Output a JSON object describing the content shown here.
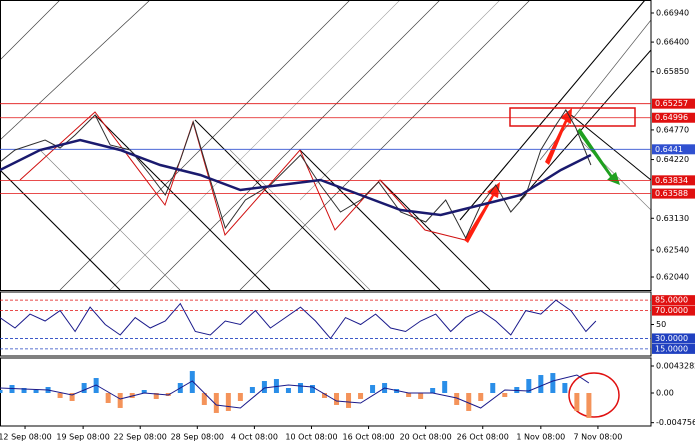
{
  "chart_data": [
    {
      "type": "line",
      "xlim": [
        0,
        130
      ],
      "xticks": [
        {
          "value": 5,
          "label": "12 Sep 08:00"
        },
        {
          "value": 16.6,
          "label": "19 Sep 08:00"
        },
        {
          "value": 28,
          "label": "22 Sep 08:00"
        },
        {
          "value": 39.4,
          "label": "28 Sep 08:00"
        },
        {
          "value": 50.8,
          "label": "4 Oct 08:00"
        },
        {
          "value": 62.2,
          "label": "10 Oct 08:00"
        },
        {
          "value": 73.6,
          "label": "16 Oct 08:00"
        },
        {
          "value": 85,
          "label": "20 Oct 08:00"
        },
        {
          "value": 96.4,
          "label": "26 Oct 08:00"
        },
        {
          "value": 108,
          "label": "1 Nov 08:00"
        },
        {
          "value": 119.4,
          "label": "7 Nov 08:00"
        }
      ],
      "ylim": [
        0.61799,
        0.67181
      ],
      "yticks": [
        {
          "value": 0.6694,
          "label": "0.66940"
        },
        {
          "value": 0.664,
          "label": "0.66400"
        },
        {
          "value": 0.6585,
          "label": "0.65850"
        },
        {
          "value": 0.6477,
          "label": "0.64770"
        },
        {
          "value": 0.6422,
          "label": "0.64220"
        },
        {
          "value": 0.6313,
          "label": "0.63130"
        },
        {
          "value": 0.6254,
          "label": "0.62540"
        },
        {
          "value": 0.6204,
          "label": "0.62040"
        }
      ],
      "levels": [
        {
          "value": 0.65257,
          "color": "#e01010"
        },
        {
          "value": 0.64996,
          "color": "#e01010"
        },
        {
          "value": 0.6441,
          "color": "#3050d0"
        },
        {
          "value": 0.63834,
          "color": "#e01010"
        },
        {
          "value": 0.63588,
          "color": "#e01010"
        }
      ],
      "series": [
        {
          "color": "#303030",
          "x": [
            0,
            3,
            6,
            9,
            12,
            15,
            19,
            22,
            26,
            30,
            33,
            36,
            38.6,
            42,
            45,
            49,
            54,
            60,
            64,
            68,
            72,
            75.6,
            80,
            85,
            89,
            93,
            96,
            99,
            102,
            105,
            108,
            111,
            113,
            115,
            118
          ],
          "values": [
            0.64174,
            0.64397,
            0.6449,
            0.64583,
            0.64434,
            0.64675,
            0.65047,
            0.6449,
            0.64397,
            0.63933,
            0.63562,
            0.64211,
            0.64917,
            0.6384,
            0.62949,
            0.63469,
            0.63747,
            0.64304,
            0.63747,
            0.63246,
            0.63469,
            0.63803,
            0.63246,
            0.63061,
            0.63469,
            0.62764,
            0.63376,
            0.63747,
            0.63246,
            0.63562,
            0.64397,
            0.64861,
            0.65139,
            0.64805,
            0.64118
          ]
        },
        {
          "color": "#1a1a6e",
          "x": [
            0,
            8,
            16,
            24,
            32,
            40,
            48,
            56,
            64,
            72,
            80,
            88,
            96,
            104,
            112,
            118
          ],
          "values": [
            0.64026,
            0.64397,
            0.64583,
            0.64397,
            0.64119,
            0.63933,
            0.63655,
            0.63747,
            0.6384,
            0.63562,
            0.63284,
            0.63191,
            0.63376,
            0.63562,
            0.64026,
            0.64304
          ]
        }
      ]
    },
    {
      "type": "line",
      "xlim": [
        0,
        130
      ],
      "ylim": [
        4.8,
        96.7
      ],
      "yticks": [
        50
      ],
      "levels": [
        {
          "value": 85,
          "label": "85.0000",
          "color": "#e01010"
        },
        {
          "value": 70,
          "label": "70.0000",
          "color": "#e01010"
        },
        {
          "value": 30,
          "label": "30.0000",
          "color": "#2040c0"
        },
        {
          "value": 15,
          "label": "15.0000",
          "color": "#2040c0"
        }
      ],
      "series": [
        {
          "color": "#1a1a8b",
          "x": [
            0,
            3,
            6,
            9,
            12,
            15,
            18,
            21,
            24,
            27,
            30,
            33,
            36,
            39,
            42,
            45,
            48,
            51,
            54,
            57,
            60,
            63,
            66,
            69,
            72,
            75,
            78,
            81,
            84,
            87,
            90,
            93,
            96,
            99,
            102,
            105,
            108,
            111,
            114,
            117,
            119
          ],
          "values": [
            60,
            45,
            65,
            55,
            70,
            40,
            75,
            50,
            35,
            60,
            45,
            55,
            80,
            40,
            35,
            55,
            50,
            70,
            45,
            60,
            75,
            55,
            30,
            60,
            50,
            65,
            45,
            40,
            55,
            65,
            40,
            60,
            70,
            55,
            35,
            70,
            65,
            85,
            70,
            40,
            55
          ]
        }
      ]
    },
    {
      "type": "bar",
      "xlim": [
        0,
        130
      ],
      "ylim": [
        -0.00529,
        0.00561
      ],
      "yticks": [
        0.0043282,
        {
          "value": 0,
          "label": "0.00"
        },
        -0.0047568
      ],
      "colors": {
        "positive": "#2a8ee8",
        "negative": "#f4935a"
      },
      "x": [
        0,
        2.4,
        4.8,
        7.2,
        9.6,
        12,
        14.4,
        16.8,
        19.2,
        21.6,
        24,
        26.4,
        28.8,
        31.2,
        33.6,
        36,
        38.4,
        40.8,
        43.2,
        45.6,
        48,
        50.4,
        52.8,
        55.2,
        57.6,
        60,
        62.4,
        64.8,
        67.2,
        69.6,
        72,
        74.4,
        76.8,
        79.2,
        81.6,
        84,
        86.4,
        88.8,
        91.2,
        93.6,
        96,
        98.4,
        100.8,
        103.2,
        105.6,
        108,
        110.4,
        112.8,
        115.2,
        117.6
      ],
      "values": [
        0.00048,
        0.00128,
        0.0008,
        0.00048,
        0.00096,
        -0.0008,
        -0.00128,
        0.0016,
        0.0024,
        -0.0016,
        -0.0024,
        -0.0008,
        0.00048,
        -0.00096,
        -0.00048,
        0.0016,
        0.00352,
        -0.00192,
        -0.0032,
        -0.00288,
        -0.00128,
        0.00096,
        0.00192,
        0.00224,
        0.0008,
        0.0016,
        0.00128,
        -0.0008,
        -0.00192,
        -0.0024,
        -0.00096,
        0.00128,
        0.0016,
        0.00064,
        -0.00064,
        -0.00096,
        0.0008,
        0.00192,
        -0.00192,
        -0.00288,
        -0.00128,
        0.0016,
        -0.00064,
        0.00096,
        0.00224,
        0.00288,
        0.0032,
        0.0016,
        -0.00288,
        -0.004
      ],
      "series": [
        {
          "color": "#1a1a8b",
          "x": [
            0,
            4.8,
            9.6,
            14.4,
            19.2,
            24,
            28.8,
            33.6,
            38.4,
            43.2,
            48,
            52.8,
            57.6,
            62.4,
            67.2,
            72,
            76.8,
            81.6,
            86.4,
            91.2,
            96,
            100.8,
            105.6,
            110.4,
            115.2,
            117.6
          ],
          "values": [
            0.0008,
            0.00064,
            0.00048,
            -0.00032,
            0.00128,
            -0.00096,
            0,
            -0.00032,
            0.00192,
            -0.00192,
            -0.0024,
            0.0008,
            0.00128,
            0.00096,
            -0.00128,
            -0.0016,
            0.0008,
            0,
            0,
            -0.0008,
            -0.0024,
            0.00048,
            0.00032,
            0.00192,
            0.00288,
            0.0016
          ]
        }
      ]
    }
  ]
}
